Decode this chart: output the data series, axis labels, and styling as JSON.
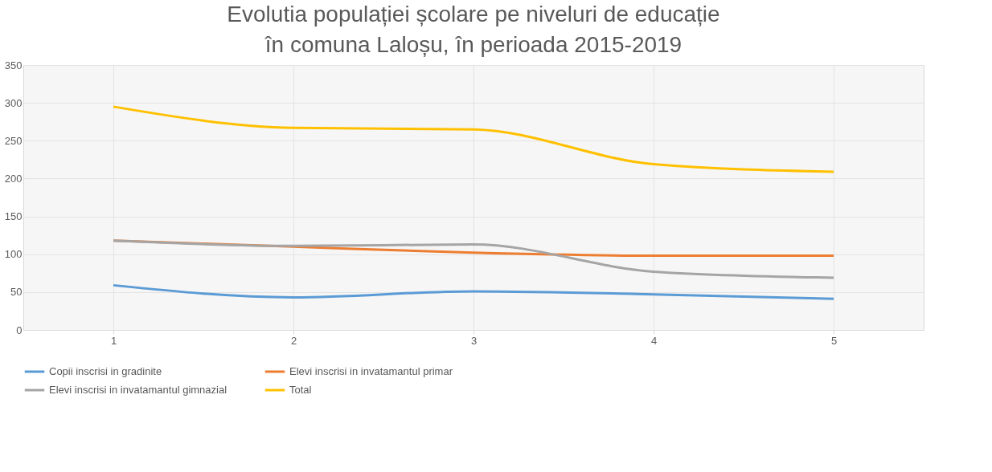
{
  "chart_data": {
    "type": "line",
    "title": "Evolutia populației școlare pe niveluri de educație în comuna Laloșu, în perioada 2015-2019",
    "categories": [
      "1",
      "2",
      "3",
      "4",
      "5"
    ],
    "series": [
      {
        "name": "Copii inscrisi in gradinite",
        "color": "#5b9bd5",
        "values": [
          59,
          43,
          51,
          47,
          41
        ]
      },
      {
        "name": "Elevi inscrisi in invatamantul primar",
        "color": "#ed7d31",
        "values": [
          118,
          110,
          102,
          98,
          98
        ]
      },
      {
        "name": "Elevi inscrisi in invatamantul gimnazial",
        "color": "#a5a5a5",
        "values": [
          118,
          111,
          113,
          77,
          69
        ]
      },
      {
        "name": "Total",
        "color": "#ffc000",
        "values": [
          295,
          267,
          265,
          219,
          209
        ]
      }
    ],
    "ylim": [
      0,
      350
    ],
    "yticks": [
      0,
      50,
      100,
      150,
      200,
      250,
      300,
      350
    ],
    "grid": true,
    "legend": "bottom",
    "marker": "none",
    "line_style": "solid"
  }
}
